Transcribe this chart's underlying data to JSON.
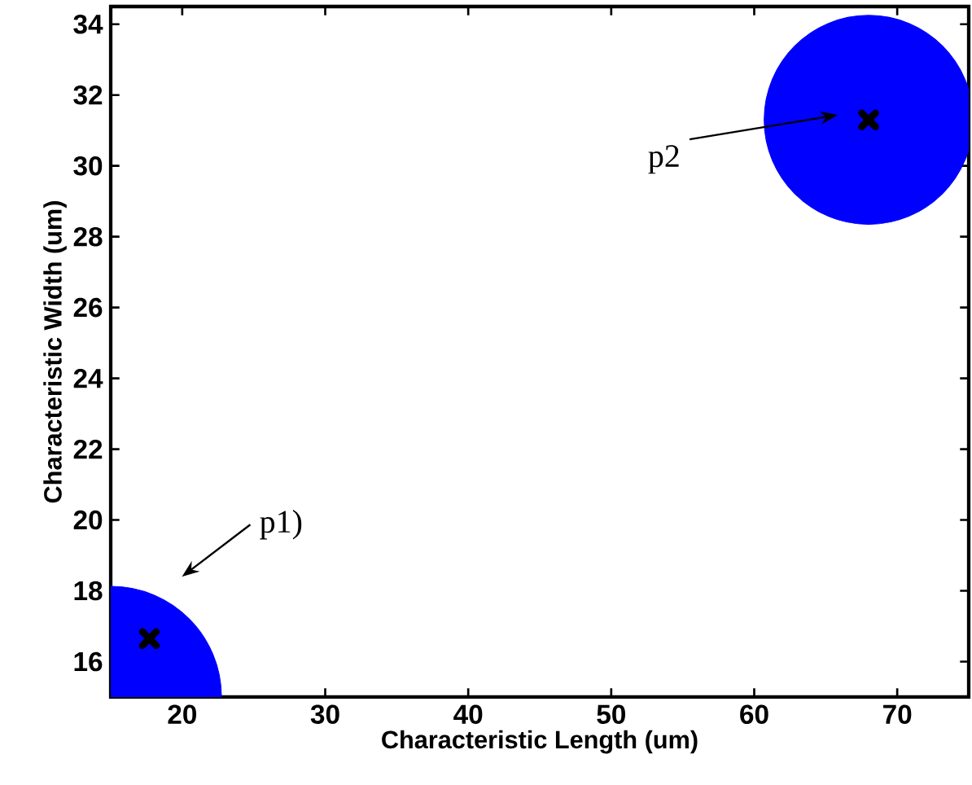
{
  "chart_data": {
    "type": "bubble",
    "xlabel": "Characteristic Length (um)",
    "ylabel": "Characteristic Width (um)",
    "xlim": [
      15,
      75
    ],
    "ylim": [
      15,
      34.5
    ],
    "xticks": [
      20,
      30,
      40,
      50,
      60,
      70
    ],
    "yticks": [
      16,
      18,
      20,
      22,
      24,
      26,
      28,
      30,
      32,
      34
    ],
    "series": [
      {
        "color": "#0000ff",
        "x": [
          15,
          68
        ],
        "values": [
          15,
          31.3
        ],
        "sizes": [
          1,
          0.89
        ]
      },
      {
        "type": "scatter",
        "marker": "cross",
        "color": "#000000",
        "x": [
          17.7,
          68
        ],
        "values": [
          16.65,
          31.3
        ]
      }
    ],
    "annotations": [
      "p1)",
      "p2"
    ]
  }
}
